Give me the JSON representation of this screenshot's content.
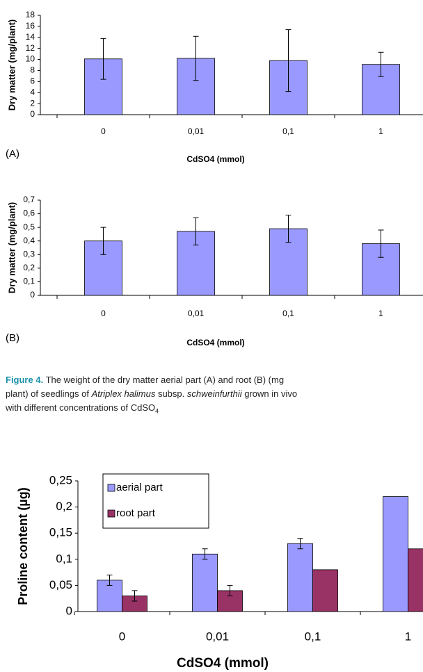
{
  "chart_data": [
    {
      "type": "bar",
      "panel_label": "(A)",
      "y_label": "Dry matter (mg/plant)",
      "x_label": "CdSO4 (mmol)",
      "categories": [
        "0",
        "0,01",
        "0,1",
        "1"
      ],
      "values": [
        10.1,
        10.2,
        9.8,
        9.1
      ],
      "errors": [
        3.7,
        4.0,
        5.6,
        2.2
      ],
      "color": "#9999ff",
      "ylim": [
        0,
        18
      ],
      "yticks": [
        0,
        2,
        4,
        6,
        8,
        10,
        12,
        14,
        16,
        18
      ]
    },
    {
      "type": "bar",
      "panel_label": "(B)",
      "y_label": "Dry matter (mg/plant)",
      "x_label": "CdSO4 (mmol)",
      "categories": [
        "0",
        "0,01",
        "0,1",
        "1"
      ],
      "values": [
        0.4,
        0.47,
        0.49,
        0.38
      ],
      "errors": [
        0.1,
        0.1,
        0.1,
        0.1
      ],
      "color": "#9999ff",
      "ylim": [
        0,
        0.7
      ],
      "yticks": [
        0,
        {
          "value": 0.1,
          "label": "0,1"
        },
        {
          "value": 0.2,
          "label": "0,2"
        },
        {
          "value": 0.3,
          "label": "0,3"
        },
        {
          "value": 0.4,
          "label": "0,4"
        },
        {
          "value": 0.5,
          "label": "0,5"
        },
        {
          "value": 0.6,
          "label": "0,6"
        },
        {
          "value": 0.7,
          "label": "0,7"
        }
      ]
    },
    {
      "type": "grouped_bar",
      "y_label": "Proline content (µg)",
      "x_label": "CdSO4 (mmol)",
      "categories": [
        "0",
        "0,01",
        "0,1",
        "1"
      ],
      "series": [
        {
          "name": "aerial part",
          "color": "#9999ff",
          "values": [
            0.06,
            0.11,
            0.13,
            0.22
          ],
          "errors": [
            0.01,
            0.01,
            0.01,
            null
          ]
        },
        {
          "name": "root part",
          "color": "#993366",
          "values": [
            0.03,
            0.04,
            0.08,
            0.12
          ],
          "errors": [
            0.01,
            0.01,
            null,
            null
          ]
        }
      ],
      "ylim": [
        0,
        0.25
      ],
      "yticks": [
        0,
        {
          "value": 0.05,
          "label": "0,05"
        },
        {
          "value": 0.1,
          "label": "0,1"
        },
        {
          "value": 0.15,
          "label": "0,15"
        },
        {
          "value": 0.2,
          "label": "0,2"
        },
        {
          "value": 0.25,
          "label": "0,25"
        }
      ]
    }
  ],
  "caption": {
    "label": "Figure 4.",
    "line1": "The weight of the dry matter aerial part (A) and root (B) (mg",
    "line2_a": "plant) of seedlings of ",
    "line2_b": "Atriplex halimus",
    "line2_c": " subsp. ",
    "line2_d": "schweinfurthii",
    "line2_e": " grown in vivo",
    "line3": "with different concentrations of CdSO",
    "line3_sub": "4"
  }
}
